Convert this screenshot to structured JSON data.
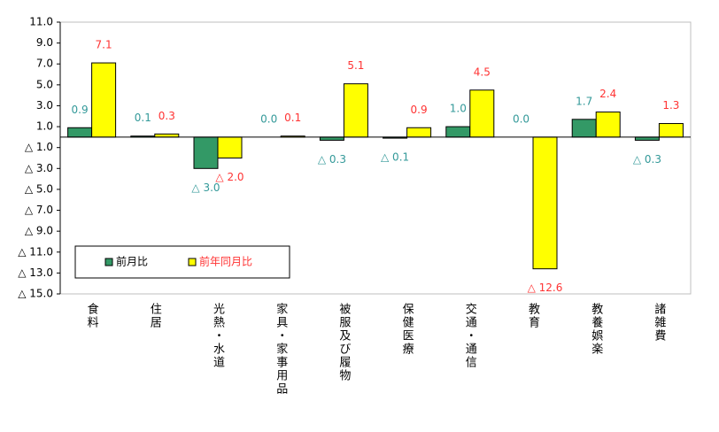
{
  "chart_data": {
    "type": "bar",
    "categories": [
      "食料",
      "住居",
      "光熱・水道",
      "家具・家事用品",
      "被服及び履物",
      "保健医療",
      "交通・通信",
      "教育",
      "教養娯楽",
      "諸雑費"
    ],
    "series": [
      {
        "name": "前月比",
        "color": "#339966",
        "label_color": "#339999",
        "values": [
          0.9,
          0.1,
          -3.0,
          0.0,
          -0.3,
          -0.1,
          1.0,
          0.0,
          1.7,
          -0.3
        ],
        "value_labels": [
          "0.9",
          "0.1",
          "△ 3.0",
          "0.0",
          "△ 0.3",
          "△ 0.1",
          "1.0",
          "0.0",
          "1.7",
          "△ 0.3"
        ]
      },
      {
        "name": "前年同月比",
        "color": "#ffff00",
        "label_color": "#ff3333",
        "values": [
          7.1,
          0.3,
          -2.0,
          0.1,
          5.1,
          0.9,
          4.5,
          -12.6,
          2.4,
          1.3
        ],
        "value_labels": [
          "7.1",
          "0.3",
          "△ 2.0",
          "0.1",
          "5.1",
          "0.9",
          "4.5",
          "△ 12.6",
          "2.4",
          "1.3"
        ]
      }
    ],
    "ylim": [
      -15,
      11
    ],
    "yticks": [
      {
        "value": 11,
        "label": "11.0"
      },
      {
        "value": 9,
        "label": "9.0"
      },
      {
        "value": 7,
        "label": "7.0"
      },
      {
        "value": 5,
        "label": "5.0"
      },
      {
        "value": 3,
        "label": "3.0"
      },
      {
        "value": 1,
        "label": "1.0"
      },
      {
        "value": -1,
        "label": "△ 1.0"
      },
      {
        "value": -3,
        "label": "△ 3.0"
      },
      {
        "value": -5,
        "label": "△ 5.0"
      },
      {
        "value": -7,
        "label": "△ 7.0"
      },
      {
        "value": -9,
        "label": "△ 9.0"
      },
      {
        "value": -11,
        "label": "△ 11.0"
      },
      {
        "value": -13,
        "label": "△ 13.0"
      },
      {
        "value": -15,
        "label": "△ 15.0"
      }
    ],
    "grid": false,
    "legend": "lower-left"
  }
}
